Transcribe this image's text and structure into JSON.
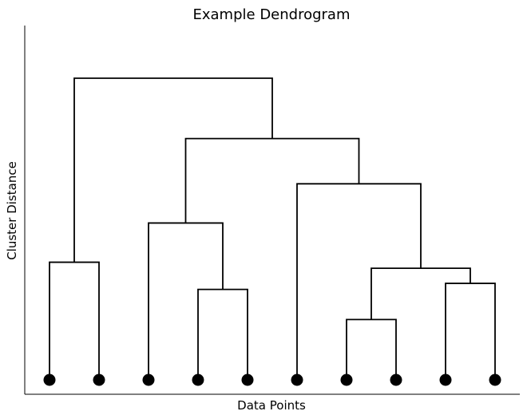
{
  "title": "Example Dendrogram",
  "xlabel": "Data Points",
  "ylabel": "Cluster Distance",
  "colors": {
    "line": "#000000",
    "leaf": "#000000",
    "background": "#ffffff"
  },
  "chart_data": {
    "type": "dendrogram",
    "leaf_count": 10,
    "axis_ticks_shown": false,
    "merges": [
      {
        "children": [
          "leaf-1",
          "leaf-2"
        ],
        "height": 3.9
      },
      {
        "children": [
          "leaf-4",
          "leaf-5"
        ],
        "height": 3.0
      },
      {
        "children": [
          "leaf-3",
          "merge-2"
        ],
        "height": 5.2
      },
      {
        "children": [
          "leaf-7",
          "leaf-8"
        ],
        "height": 2.0
      },
      {
        "children": [
          "leaf-9",
          "leaf-10"
        ],
        "height": 3.2
      },
      {
        "children": [
          "merge-4",
          "merge-5"
        ],
        "height": 3.7
      },
      {
        "children": [
          "leaf-6",
          "merge-6"
        ],
        "height": 6.5
      },
      {
        "children": [
          "merge-3",
          "merge-7"
        ],
        "height": 8.0
      },
      {
        "children": [
          "merge-1",
          "merge-8"
        ],
        "height": 10.0
      }
    ]
  }
}
